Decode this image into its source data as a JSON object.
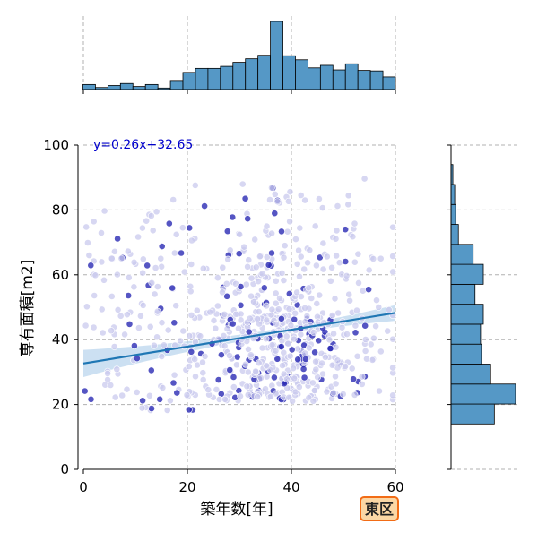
{
  "chart_data": {
    "type": "scatter",
    "xlabel": "築年数[年]",
    "ylabel": "専有面積[m2]",
    "xlim": [
      0,
      60
    ],
    "ylim": [
      0,
      100
    ],
    "x_ticks": [
      0,
      20,
      40,
      60
    ],
    "y_ticks": [
      0,
      20,
      40,
      60,
      80,
      100
    ],
    "grid": true,
    "annotation": "y=0.26x+32.65",
    "badge": "東区",
    "regression": {
      "slope": 0.26,
      "intercept": 32.65
    },
    "marginal_x_counts": [
      1,
      0.4,
      0.8,
      1.2,
      0.6,
      1,
      0.3,
      1.8,
      3.4,
      4.2,
      4.2,
      4.6,
      5.4,
      6.1,
      6.8,
      13.5,
      6.7,
      5.9,
      4.3,
      4.8,
      3.9,
      5.1,
      3.8,
      3.7,
      2.5
    ],
    "marginal_y_counts": [
      47,
      70,
      43,
      33,
      32,
      35,
      26,
      35,
      24,
      8,
      5,
      4,
      2
    ],
    "colors": {
      "scatter_light": "#c9c9ee",
      "scatter_dark": "#2b2bb4",
      "regression_line": "#1f77b4",
      "confidence_band": "#b7d3ec",
      "histogram": "#5598c6",
      "annotation": "#0000cc",
      "badge_fill": "#fbd7a5",
      "badge_border": "#f26c16"
    }
  }
}
